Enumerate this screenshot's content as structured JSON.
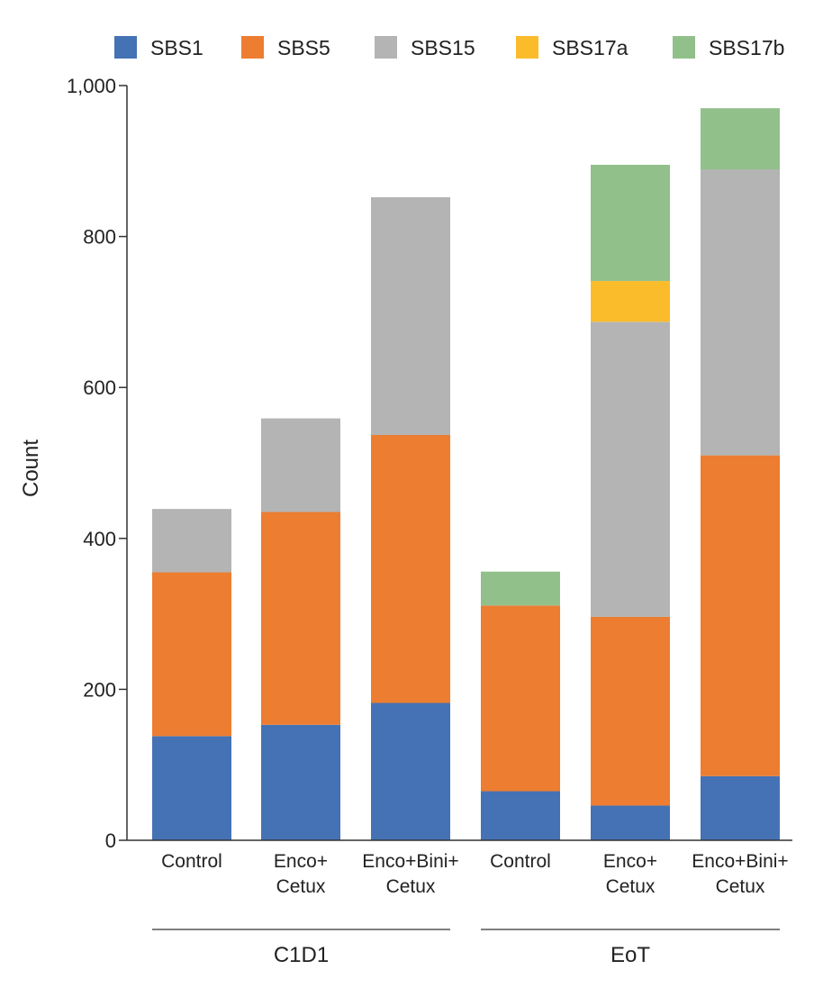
{
  "chart_data": {
    "type": "bar",
    "stacked": true,
    "title": "",
    "xlabel": "",
    "ylabel": "Count",
    "ylim": [
      0,
      1000
    ],
    "yticks": [
      0,
      200,
      400,
      600,
      800,
      1000
    ],
    "ytick_labels": [
      "0",
      "200",
      "400",
      "600",
      "800",
      "1,000"
    ],
    "grid": false,
    "legend_position": "top",
    "categories": [
      {
        "lines": [
          "Control"
        ],
        "group": "C1D1"
      },
      {
        "lines": [
          "Enco+",
          "Cetux"
        ],
        "group": "C1D1"
      },
      {
        "lines": [
          "Enco+Bini+",
          "Cetux"
        ],
        "group": "C1D1"
      },
      {
        "lines": [
          "Control"
        ],
        "group": "EoT"
      },
      {
        "lines": [
          "Enco+",
          "Cetux"
        ],
        "group": "EoT"
      },
      {
        "lines": [
          "Enco+Bini+",
          "Cetux"
        ],
        "group": "EoT"
      }
    ],
    "groups": [
      {
        "name": "C1D1",
        "first": 0,
        "last": 2
      },
      {
        "name": "EoT",
        "first": 3,
        "last": 5
      }
    ],
    "series": [
      {
        "name": "SBS1",
        "color": "#4472b4",
        "values": [
          138,
          153,
          182,
          65,
          46,
          85
        ]
      },
      {
        "name": "SBS5",
        "color": "#ed7d31",
        "values": [
          217,
          282,
          355,
          246,
          250,
          425
        ]
      },
      {
        "name": "SBS15",
        "color": "#b4b4b4",
        "values": [
          84,
          124,
          315,
          0,
          391,
          379
        ]
      },
      {
        "name": "SBS17a",
        "color": "#fbbc2c",
        "values": [
          0,
          0,
          0,
          0,
          54,
          0
        ]
      },
      {
        "name": "SBS17b",
        "color": "#92c08b",
        "values": [
          0,
          0,
          0,
          45,
          154,
          81
        ]
      }
    ]
  }
}
